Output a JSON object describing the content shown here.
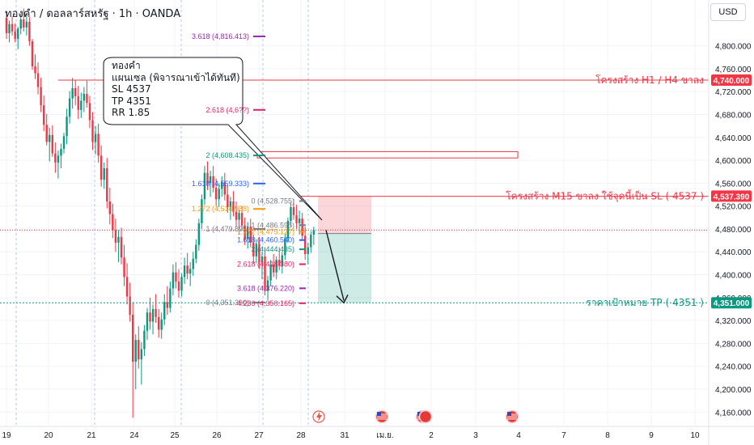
{
  "header": {
    "symbol": "ทองคำ / ดอลลาร์สหรัฐ · 1h · OANDA",
    "currency_button": "USD"
  },
  "callout": {
    "lines": [
      "ทองคำ",
      "แผนเซล (พิจารณาเข้าได้ทันที)",
      "SL 4537",
      "TP 4351",
      "RR 1.85"
    ]
  },
  "chart_data": {
    "type": "candlestick",
    "symbol": "XAUUSD",
    "timeframe": "1h",
    "price_axis": {
      "ticks": [
        4800,
        4760,
        4720,
        4680,
        4640,
        4600,
        4560,
        4520,
        4480,
        4440,
        4400,
        4360,
        4320,
        4280,
        4240,
        4200,
        4160
      ],
      "tick_labels": [
        "4,800.000",
        "4,760.000",
        "4,720.000",
        "4,680.000",
        "4,640.000",
        "4,600.000",
        "4,560.000",
        "4,520.000",
        "4,480.000",
        "4,440.000",
        "4,400.000",
        "4,360.000",
        "4,320.000",
        "4,280.000",
        "4,240.000",
        "4,200.000",
        "4,160.000"
      ],
      "range": [
        4135,
        4880
      ]
    },
    "time_axis": {
      "labels": [
        "19",
        "20",
        "21",
        "24",
        "25",
        "26",
        "27",
        "28",
        "31",
        "เม.ย.",
        "2",
        "3",
        "4",
        "7",
        "8",
        "9",
        "10"
      ]
    },
    "price_tags": [
      {
        "value": 4740.0,
        "label": "4,740.000",
        "color": "#f23645"
      },
      {
        "value": 4537.39,
        "label": "4,537.390",
        "color": "#f23645"
      },
      {
        "value": 4351.0,
        "label": "4,351.000",
        "color": "#089981"
      }
    ],
    "annotations": [
      {
        "text": "โครงสร้าง H1 / H4 ขาลง",
        "price": 4740,
        "color": "#f23645"
      },
      {
        "text": "โครงสร้าง M15 ขาลง ใช้จุดนี้เป็น SL ( 4537 )",
        "price": 4537,
        "color": "#f23645"
      },
      {
        "text": "ราคาเป้าหมาย TP ( 4351 )",
        "price": 4351,
        "color": "#089981"
      }
    ],
    "fib_left": [
      {
        "text": "3.618 (4,816.413)",
        "price": 4816.413,
        "color": "#9c27b0"
      },
      {
        "text": "2.618 (4,6??)",
        "price": 4688,
        "color": "#e91e63"
      },
      {
        "text": "2 (4,608.435)",
        "price": 4608.435,
        "color": "#089981"
      },
      {
        "text": "1.618 (4,559.333)",
        "price": 4559.333,
        "color": "#2962ff"
      },
      {
        "text": "1.272 (4,514.958)",
        "price": 4514.958,
        "color": "#ff9800"
      },
      {
        "text": "1 (4,479.895)",
        "price": 4479.895,
        "color": "#787b86"
      },
      {
        "text": "0 (4,351.390)",
        "price": 4351.39,
        "color": "#787b86"
      }
    ],
    "fib_right": [
      {
        "text": "0 (4,528.755)",
        "price": 4528.755,
        "color": "#787b86"
      },
      {
        "text": "1 (4,486.595)",
        "price": 4486.595,
        "color": "#787b86"
      },
      {
        "text": "1.272 (4,475.127)",
        "price": 4475.127,
        "color": "#ff9800"
      },
      {
        "text": "1.618 (4,460.540)",
        "price": 4460.54,
        "color": "#2962ff"
      },
      {
        "text": "2 (4,444.435)",
        "price": 4444.435,
        "color": "#089981"
      },
      {
        "text": "2.618 (4,418.380)",
        "price": 4418.38,
        "color": "#e91e63"
      },
      {
        "text": "3.618 (4,376.220)",
        "price": 4376.22,
        "color": "#9c27b0"
      },
      {
        "text": "4.236 (4,350.165)",
        "price": 4350.165,
        "color": "#e91e63"
      }
    ],
    "position": {
      "type": "short",
      "entry": 4472,
      "stop_loss": 4537,
      "take_profit": 4351
    },
    "zone": {
      "price_top": 4615,
      "price_bottom": 4604
    },
    "current_price": 4478,
    "ohlc": [
      [
        4849,
        4860,
        4812,
        4822
      ],
      [
        4822,
        4844,
        4806,
        4838
      ],
      [
        4838,
        4851,
        4818,
        4825
      ],
      [
        4825,
        4839,
        4806,
        4812
      ],
      [
        4812,
        4833,
        4794,
        4830
      ],
      [
        4830,
        4856,
        4820,
        4846
      ],
      [
        4846,
        4865,
        4825,
        4832
      ],
      [
        4832,
        4853,
        4818,
        4842
      ],
      [
        4842,
        4850,
        4800,
        4808
      ],
      [
        4808,
        4812,
        4758,
        4764
      ],
      [
        4764,
        4785,
        4742,
        4752
      ],
      [
        4752,
        4771,
        4715,
        4728
      ],
      [
        4728,
        4744,
        4684,
        4696
      ],
      [
        4696,
        4713,
        4651,
        4662
      ],
      [
        4662,
        4681,
        4626,
        4632
      ],
      [
        4632,
        4657,
        4598,
        4644
      ],
      [
        4644,
        4661,
        4606,
        4612
      ],
      [
        4612,
        4631,
        4578,
        4596
      ],
      [
        4596,
        4617,
        4568,
        4608
      ],
      [
        4608,
        4629,
        4586,
        4620
      ],
      [
        4620,
        4648,
        4612,
        4642
      ],
      [
        4642,
        4690,
        4628,
        4676
      ],
      [
        4676,
        4721,
        4664,
        4708
      ],
      [
        4708,
        4744,
        4690,
        4726
      ],
      [
        4726,
        4740,
        4696,
        4712
      ],
      [
        4712,
        4730,
        4672,
        4688
      ],
      [
        4688,
        4718,
        4674,
        4704
      ],
      [
        4704,
        4728,
        4684,
        4716
      ],
      [
        4716,
        4739,
        4692,
        4700
      ],
      [
        4700,
        4712,
        4656,
        4670
      ],
      [
        4670,
        4684,
        4618,
        4632
      ],
      [
        4632,
        4660,
        4610,
        4646
      ],
      [
        4646,
        4664,
        4596,
        4608
      ],
      [
        4608,
        4626,
        4554,
        4566
      ],
      [
        4566,
        4596,
        4550,
        4586
      ],
      [
        4586,
        4604,
        4516,
        4528
      ],
      [
        4528,
        4552,
        4488,
        4506
      ],
      [
        4506,
        4524,
        4464,
        4478
      ],
      [
        4478,
        4498,
        4440,
        4456
      ],
      [
        4456,
        4478,
        4422,
        4466
      ],
      [
        4466,
        4482,
        4418,
        4430
      ],
      [
        4430,
        4452,
        4380,
        4396
      ],
      [
        4396,
        4420,
        4348,
        4362
      ],
      [
        4362,
        4386,
        4318,
        4330
      ],
      [
        4330,
        4352,
        4150,
        4248
      ],
      [
        4248,
        4296,
        4200,
        4286
      ],
      [
        4286,
        4310,
        4236,
        4252
      ],
      [
        4252,
        4282,
        4208,
        4270
      ],
      [
        4270,
        4312,
        4258,
        4302
      ],
      [
        4302,
        4342,
        4286,
        4334
      ],
      [
        4334,
        4360,
        4304,
        4318
      ],
      [
        4318,
        4348,
        4296,
        4340
      ],
      [
        4340,
        4366,
        4316,
        4326
      ],
      [
        4326,
        4340,
        4290,
        4304
      ],
      [
        4304,
        4334,
        4288,
        4322
      ],
      [
        4322,
        4366,
        4312,
        4352
      ],
      [
        4352,
        4380,
        4330,
        4342
      ],
      [
        4342,
        4388,
        4334,
        4376
      ],
      [
        4376,
        4418,
        4364,
        4404
      ],
      [
        4404,
        4422,
        4376,
        4388
      ],
      [
        4388,
        4410,
        4360,
        4372
      ],
      [
        4372,
        4402,
        4362,
        4396
      ],
      [
        4396,
        4430,
        4384,
        4416
      ],
      [
        4416,
        4438,
        4392,
        4402
      ],
      [
        4402,
        4422,
        4380,
        4410
      ],
      [
        4410,
        4440,
        4398,
        4428
      ],
      [
        4428,
        4462,
        4420,
        4452
      ],
      [
        4452,
        4498,
        4442,
        4490
      ],
      [
        4490,
        4540,
        4480,
        4532
      ],
      [
        4532,
        4590,
        4522,
        4578
      ],
      [
        4578,
        4598,
        4548,
        4560
      ],
      [
        4560,
        4582,
        4536,
        4572
      ],
      [
        4572,
        4590,
        4544,
        4552
      ],
      [
        4552,
        4568,
        4520,
        4532
      ],
      [
        4532,
        4560,
        4518,
        4550
      ],
      [
        4550,
        4572,
        4536,
        4562
      ],
      [
        4562,
        4578,
        4530,
        4540
      ],
      [
        4540,
        4556,
        4508,
        4518
      ],
      [
        4518,
        4536,
        4496,
        4528
      ],
      [
        4528,
        4546,
        4502,
        4510
      ],
      [
        4510,
        4528,
        4484,
        4496
      ],
      [
        4496,
        4514,
        4470,
        4508
      ],
      [
        4508,
        4520,
        4478,
        4486
      ],
      [
        4486,
        4500,
        4452,
        4462
      ],
      [
        4462,
        4492,
        4446,
        4484
      ],
      [
        4484,
        4498,
        4448,
        4456
      ],
      [
        4456,
        4470,
        4420,
        4432
      ],
      [
        4432,
        4462,
        4420,
        4454
      ],
      [
        4454,
        4466,
        4410,
        4422
      ],
      [
        4422,
        4440,
        4392,
        4432
      ],
      [
        4432,
        4448,
        4364,
        4372
      ],
      [
        4372,
        4398,
        4356,
        4390
      ],
      [
        4390,
        4426,
        4380,
        4418
      ],
      [
        4418,
        4436,
        4396,
        4404
      ],
      [
        4404,
        4432,
        4392,
        4426
      ],
      [
        4426,
        4448,
        4408,
        4416
      ],
      [
        4416,
        4440,
        4402,
        4434
      ],
      [
        4434,
        4472,
        4426,
        4464
      ],
      [
        4464,
        4500,
        4456,
        4494
      ],
      [
        4494,
        4526,
        4484,
        4518
      ],
      [
        4518,
        4532,
        4496,
        4504
      ],
      [
        4504,
        4522,
        4480,
        4490
      ],
      [
        4490,
        4512,
        4470,
        4498
      ],
      [
        4498,
        4508,
        4460,
        4468
      ],
      [
        4468,
        4484,
        4426,
        4436
      ],
      [
        4436,
        4456,
        4418,
        4448
      ],
      [
        4448,
        4476,
        4438,
        4470
      ],
      [
        4470,
        4484,
        4452,
        4478
      ]
    ]
  }
}
